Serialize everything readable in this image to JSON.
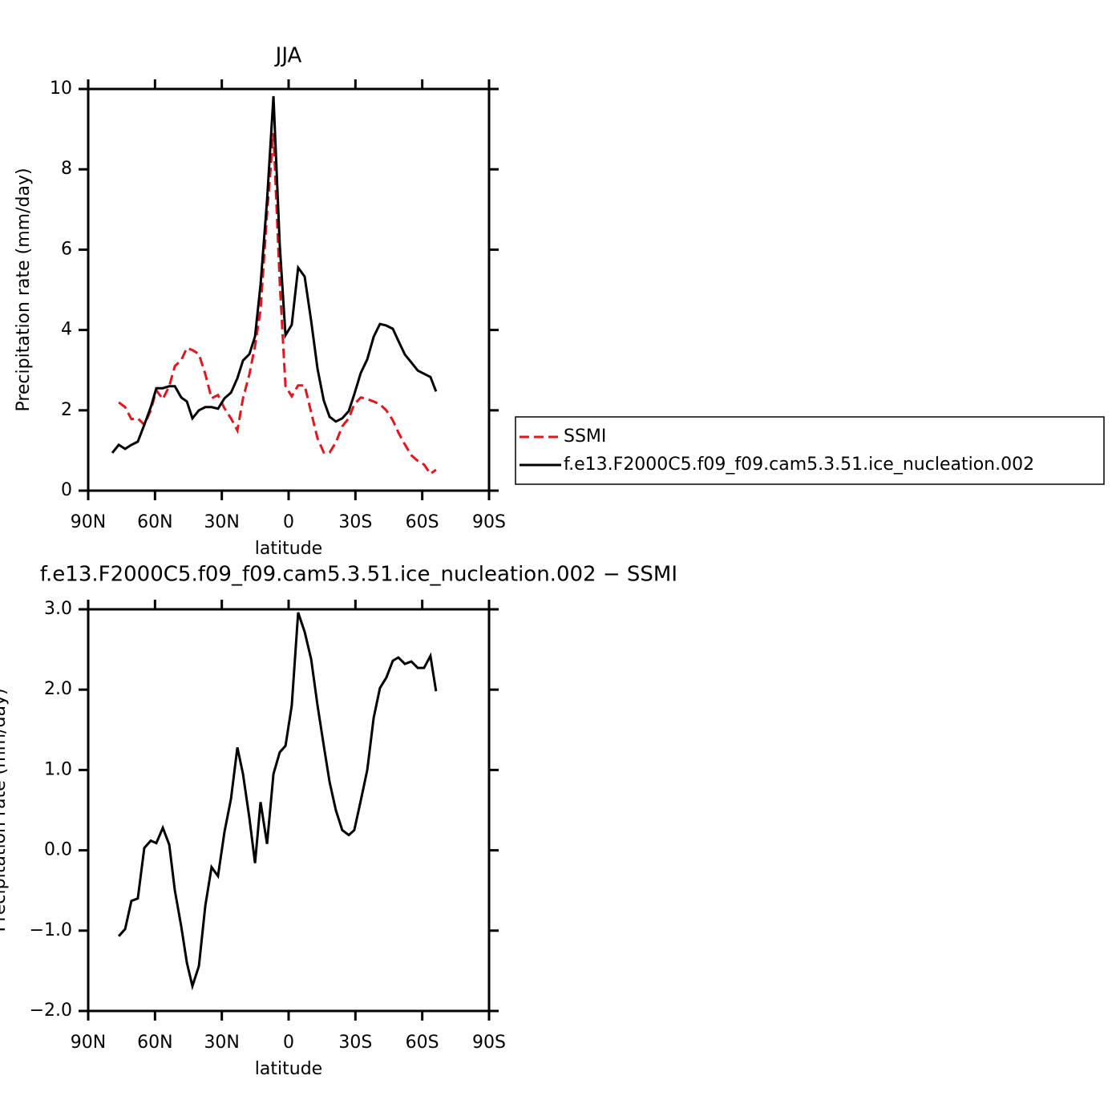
{
  "chart_data": [
    {
      "type": "line",
      "title": "JJA",
      "xlabel": "latitude",
      "ylabel": "Precipitation rate (mm/day)",
      "x": [
        79.2,
        76.3,
        73.4,
        70.6,
        67.7,
        64.8,
        61.9,
        59.4,
        56.5,
        53.6,
        51.1,
        48.2,
        45.7,
        43.2,
        40.3,
        37.4,
        34.6,
        31.7,
        28.8,
        25.9,
        23.0,
        20.5,
        17.6,
        15.1,
        12.6,
        9.7,
        6.8,
        4.0,
        1.4,
        -1.4,
        -4.3,
        -7.2,
        -10.1,
        -13.0,
        -15.8,
        -18.4,
        -21.2,
        -24.1,
        -27.0,
        -29.5,
        -32.4,
        -35.3,
        -38.2,
        -41.0,
        -43.9,
        -46.8,
        -49.3,
        -52.2,
        -55.1,
        -58.0,
        -60.8,
        -63.7,
        -66.2
      ],
      "series": [
        {
          "name": "SSMI",
          "color": "#e8141c",
          "linestyle": "dashed",
          "values": [
            null,
            2.2,
            2.08,
            1.78,
            1.8,
            1.64,
            2.0,
            2.5,
            2.28,
            2.6,
            3.1,
            3.25,
            3.55,
            3.5,
            3.4,
            2.9,
            2.3,
            2.38,
            2.05,
            1.8,
            1.5,
            2.3,
            2.9,
            3.6,
            4.5,
            6.9,
            8.9,
            5.2,
            2.6,
            2.35,
            2.62,
            2.62,
            1.95,
            1.3,
            0.95,
            0.95,
            1.2,
            1.6,
            1.8,
            2.15,
            2.32,
            2.28,
            2.22,
            2.15,
            2.0,
            1.75,
            1.45,
            1.15,
            0.88,
            0.74,
            0.65,
            0.42,
            0.52
          ]
        },
        {
          "name": "f.e13.F2000C5.f09_f09.cam5.3.51.ice_nucleation.002",
          "color": "#000000",
          "linestyle": "solid",
          "values": [
            0.94,
            1.14,
            1.04,
            1.14,
            1.22,
            1.64,
            2.08,
            2.55,
            2.55,
            2.6,
            2.6,
            2.32,
            2.22,
            1.8,
            2.0,
            2.08,
            2.08,
            2.04,
            2.3,
            2.44,
            2.8,
            3.24,
            3.4,
            3.84,
            5.13,
            7.23,
            9.82,
            6.13,
            3.87,
            4.13,
            5.55,
            5.33,
            4.23,
            3.03,
            2.24,
            1.84,
            1.72,
            1.8,
            1.98,
            2.4,
            2.93,
            3.27,
            3.83,
            4.15,
            4.11,
            4.03,
            3.73,
            3.39,
            3.19,
            2.99,
            2.91,
            2.83,
            2.47
          ]
        }
      ],
      "xlim": [
        90,
        -90
      ],
      "xticks": [
        {
          "value": 90,
          "label": "90N"
        },
        {
          "value": 60,
          "label": "60N"
        },
        {
          "value": 30,
          "label": "30N"
        },
        0,
        {
          "value": -30,
          "label": "30S"
        },
        {
          "value": -60,
          "label": "60S"
        },
        {
          "value": -90,
          "label": "90S"
        }
      ],
      "ylim": [
        0,
        10
      ],
      "yticks": [
        0,
        2,
        4,
        6,
        8,
        10
      ],
      "legend": "right"
    },
    {
      "type": "line",
      "title": "f.e13.F2000C5.f09_f09.cam5.3.51.ice_nucleation.002 − SSMI",
      "xlabel": "latitude",
      "ylabel": "Precipitation rate (mm/day)",
      "x": [
        76.3,
        73.4,
        70.6,
        67.7,
        64.8,
        61.9,
        59.4,
        56.5,
        53.6,
        51.1,
        48.2,
        45.7,
        43.2,
        40.3,
        37.4,
        34.6,
        31.7,
        28.8,
        25.9,
        23.0,
        20.5,
        17.6,
        15.1,
        12.6,
        9.7,
        6.8,
        4.0,
        1.4,
        -1.4,
        -4.3,
        -7.2,
        -10.1,
        -13.0,
        -15.8,
        -18.4,
        -21.2,
        -24.1,
        -27.0,
        -29.5,
        -32.4,
        -35.3,
        -38.2,
        -41.0,
        -43.9,
        -46.8,
        -49.3,
        -52.2,
        -55.1,
        -58.0,
        -60.8,
        -63.7,
        -66.2
      ],
      "color": "#000000",
      "values": [
        -1.07,
        -0.98,
        -0.63,
        -0.6,
        0.03,
        0.12,
        0.09,
        0.28,
        0.07,
        -0.5,
        -0.95,
        -1.4,
        -1.69,
        -1.44,
        -0.69,
        -0.21,
        -0.32,
        0.23,
        0.64,
        1.28,
        0.95,
        0.4,
        -0.16,
        0.6,
        0.08,
        0.95,
        1.22,
        1.3,
        1.8,
        2.96,
        2.72,
        2.38,
        1.8,
        1.3,
        0.85,
        0.5,
        0.25,
        0.19,
        0.25,
        0.62,
        1.0,
        1.65,
        2.02,
        2.15,
        2.36,
        2.4,
        2.32,
        2.35,
        2.27,
        2.27,
        2.42,
        1.98
      ],
      "xlim": [
        90,
        -90
      ],
      "xticks": [
        {
          "value": 90,
          "label": "90N"
        },
        {
          "value": 60,
          "label": "60N"
        },
        {
          "value": 30,
          "label": "30N"
        },
        0,
        {
          "value": -30,
          "label": "30S"
        },
        {
          "value": -60,
          "label": "60S"
        },
        {
          "value": -90,
          "label": "90S"
        }
      ],
      "ylim": [
        -2,
        3
      ],
      "yticks": [
        {
          "value": 3,
          "label": "3.0"
        },
        {
          "value": 2,
          "label": "2.0"
        },
        {
          "value": 1,
          "label": "1.0"
        },
        {
          "value": 0,
          "label": "0.0"
        },
        {
          "value": -1,
          "label": "−1.0"
        },
        {
          "value": -2,
          "label": "−2.0"
        }
      ]
    }
  ]
}
